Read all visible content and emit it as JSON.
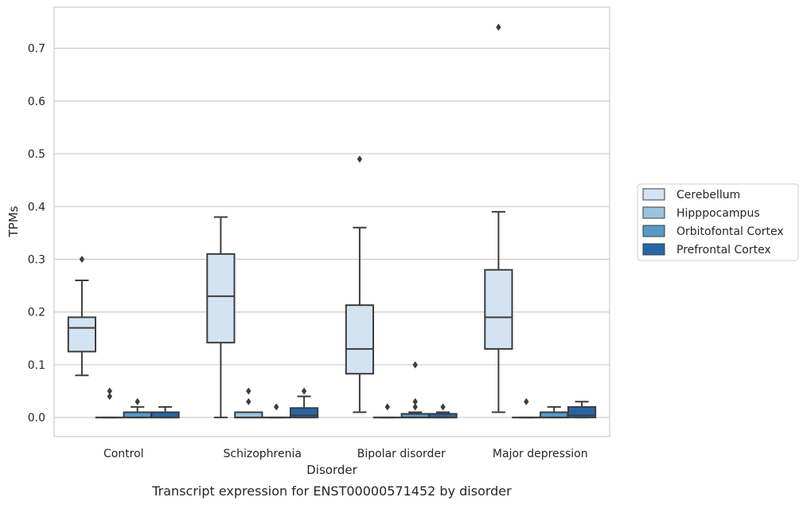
{
  "chart_data": {
    "type": "box",
    "caption": "Transcript expression for ENST00000571452 by disorder",
    "xlabel": "Disorder",
    "ylabel": "TPMs",
    "ylim": [
      -0.036,
      0.778
    ],
    "yticks": [
      0.0,
      0.1,
      0.2,
      0.3,
      0.4,
      0.5,
      0.6,
      0.7
    ],
    "ytick_labels": [
      "0.0",
      "0.1",
      "0.2",
      "0.3",
      "0.4",
      "0.5",
      "0.6",
      "0.7"
    ],
    "grid": "horizontal",
    "legend_position": "right",
    "categories": [
      "Control",
      "Schizophrenia",
      "Bipolar disorder",
      "Major depression"
    ],
    "series": [
      {
        "name": "Cerebellum",
        "color": "#d4e3f1",
        "boxes": [
          {
            "whislo": 0.08,
            "q1": 0.125,
            "med": 0.17,
            "q3": 0.19,
            "whishi": 0.26,
            "fliers": [
              0.3
            ]
          },
          {
            "whislo": 0.0,
            "q1": 0.142,
            "med": 0.23,
            "q3": 0.31,
            "whishi": 0.38,
            "fliers": []
          },
          {
            "whislo": 0.01,
            "q1": 0.083,
            "med": 0.13,
            "q3": 0.213,
            "whishi": 0.36,
            "fliers": [
              0.49
            ]
          },
          {
            "whislo": 0.01,
            "q1": 0.13,
            "med": 0.19,
            "q3": 0.28,
            "whishi": 0.39,
            "fliers": [
              0.74
            ]
          }
        ]
      },
      {
        "name": "Hipppocampus",
        "color": "#9cc3dd",
        "boxes": [
          {
            "whislo": 0.0,
            "q1": 0.0,
            "med": 0.0,
            "q3": 0.0,
            "whishi": 0.0,
            "fliers": [
              0.04,
              0.05
            ]
          },
          {
            "whislo": 0.0,
            "q1": 0.0,
            "med": 0.0,
            "q3": 0.01,
            "whishi": 0.01,
            "fliers": [
              0.03,
              0.05
            ]
          },
          {
            "whislo": 0.0,
            "q1": 0.0,
            "med": 0.0,
            "q3": 0.0,
            "whishi": 0.0,
            "fliers": [
              0.02
            ]
          },
          {
            "whislo": 0.0,
            "q1": 0.0,
            "med": 0.0,
            "q3": 0.0,
            "whishi": 0.0,
            "fliers": [
              0.03
            ]
          }
        ]
      },
      {
        "name": "Orbitofontal Cortex",
        "color": "#5799c6",
        "boxes": [
          {
            "whislo": 0.0,
            "q1": 0.0,
            "med": 0.0,
            "q3": 0.01,
            "whishi": 0.02,
            "fliers": [
              0.03
            ]
          },
          {
            "whislo": 0.0,
            "q1": 0.0,
            "med": 0.0,
            "q3": 0.0,
            "whishi": 0.0,
            "fliers": [
              0.02
            ]
          },
          {
            "whislo": 0.0,
            "q1": 0.0,
            "med": 0.0,
            "q3": 0.007,
            "whishi": 0.01,
            "fliers": [
              0.02,
              0.03,
              0.1
            ]
          },
          {
            "whislo": 0.0,
            "q1": 0.0,
            "med": 0.0,
            "q3": 0.01,
            "whishi": 0.02,
            "fliers": []
          }
        ]
      },
      {
        "name": "Prefrontal Cortex",
        "color": "#2766a6",
        "boxes": [
          {
            "whislo": 0.0,
            "q1": 0.0,
            "med": 0.0,
            "q3": 0.01,
            "whishi": 0.02,
            "fliers": []
          },
          {
            "whislo": 0.0,
            "q1": 0.0,
            "med": 0.004,
            "q3": 0.018,
            "whishi": 0.04,
            "fliers": [
              0.05
            ]
          },
          {
            "whislo": 0.0,
            "q1": 0.0,
            "med": 0.0,
            "q3": 0.007,
            "whishi": 0.01,
            "fliers": [
              0.02
            ]
          },
          {
            "whislo": 0.0,
            "q1": 0.0,
            "med": 0.004,
            "q3": 0.02,
            "whishi": 0.03,
            "fliers": []
          }
        ]
      }
    ]
  }
}
